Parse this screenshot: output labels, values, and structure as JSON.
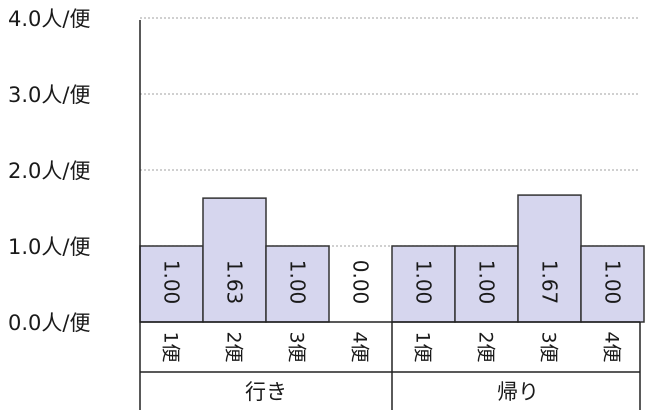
{
  "chart_data": {
    "type": "bar",
    "title": "",
    "xlabel": "",
    "ylabel": "",
    "ylim": [
      0,
      4
    ],
    "yticks": [
      {
        "value": 0,
        "label": "0.0人/便"
      },
      {
        "value": 1,
        "label": "1.0人/便"
      },
      {
        "value": 2,
        "label": "2.0人/便"
      },
      {
        "value": 3,
        "label": "3.0人/便"
      },
      {
        "value": 4,
        "label": "4.0人/便"
      }
    ],
    "groups": [
      {
        "name": "行き",
        "categories": [
          "1便",
          "2便",
          "3便",
          "4便"
        ]
      },
      {
        "name": "帰り",
        "categories": [
          "1便",
          "2便",
          "3便",
          "4便"
        ]
      }
    ],
    "values": [
      1.0,
      1.63,
      1.0,
      0.0,
      1.0,
      1.0,
      1.67,
      1.0
    ],
    "value_labels": [
      "1.00",
      "1.63",
      "1.00",
      "0.00",
      "1.00",
      "1.00",
      "1.67",
      "1.00"
    ],
    "grid": true,
    "gridline_style": "dotted",
    "bar_color": "#d6d6ee",
    "bar_edge_color": "#333333"
  }
}
